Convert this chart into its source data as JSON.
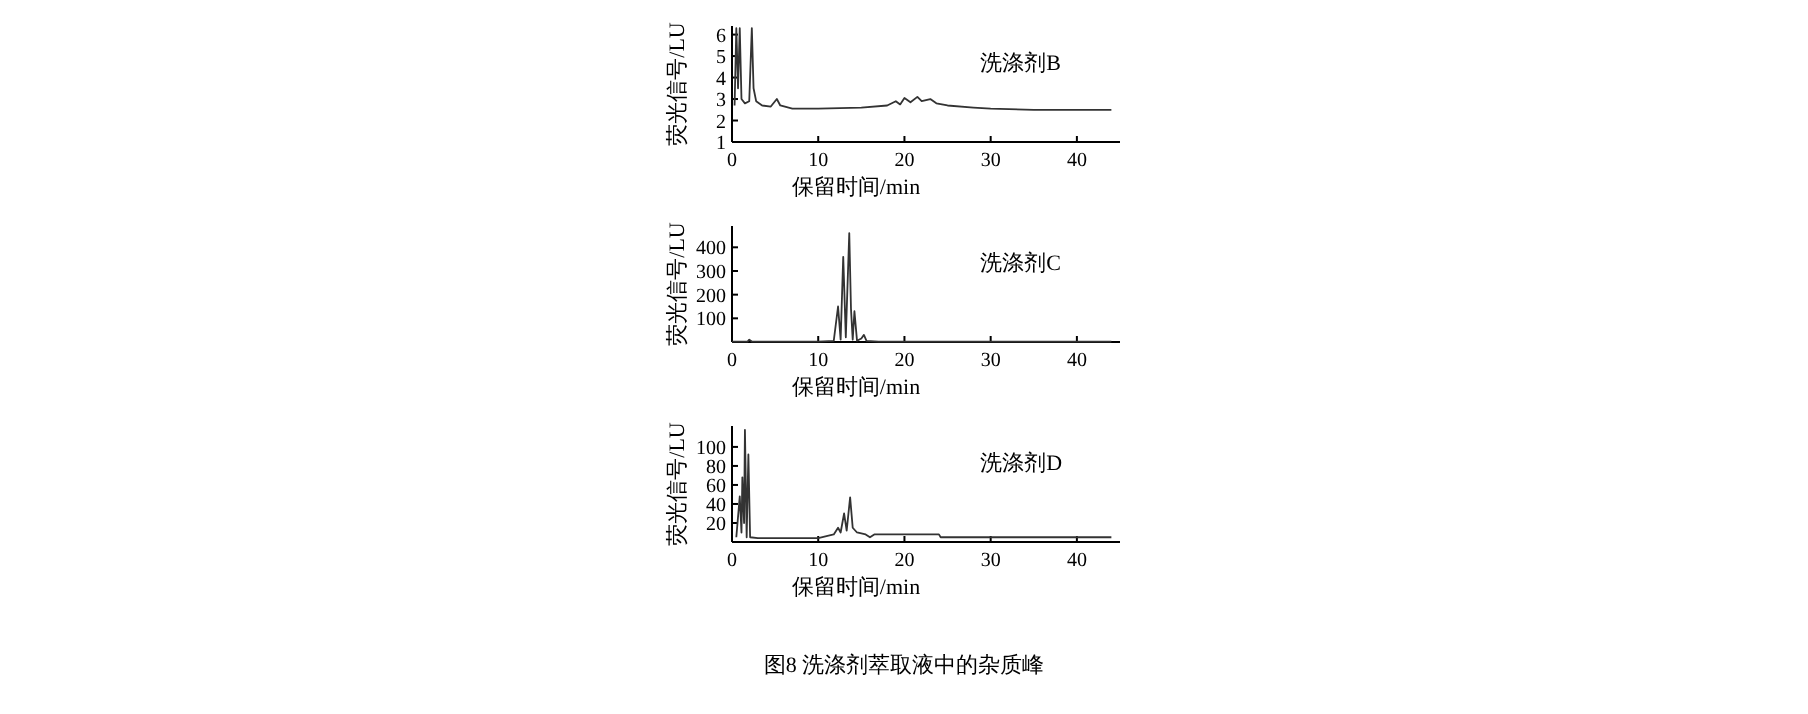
{
  "chart_data": [
    {
      "type": "line",
      "xlabel": "保留时间/min",
      "ylabel": "荧光信号/LU",
      "xlim": [
        0,
        45
      ],
      "xticks": [
        0,
        10,
        20,
        30,
        40
      ],
      "ylim": [
        1,
        6.4
      ],
      "yticks": [
        1,
        2,
        3,
        4,
        5,
        6
      ],
      "series": [
        {
          "name": "洗涤剂B",
          "color": "#333333",
          "x": [
            0.3,
            0.5,
            0.7,
            0.9,
            1.1,
            1.5,
            2.0,
            2.3,
            2.5,
            2.8,
            3.5,
            4.5,
            5.2,
            5.6,
            7,
            10,
            15,
            18,
            19,
            19.5,
            20,
            20.7,
            21.5,
            22,
            23,
            23.7,
            25,
            28,
            30,
            35,
            40,
            44
          ],
          "values": [
            2.7,
            6.3,
            3.5,
            6.3,
            3.0,
            2.8,
            2.9,
            6.3,
            3.5,
            2.9,
            2.7,
            2.65,
            3.0,
            2.7,
            2.55,
            2.55,
            2.6,
            2.7,
            2.9,
            2.75,
            3.05,
            2.85,
            3.1,
            2.9,
            3.0,
            2.8,
            2.7,
            2.6,
            2.55,
            2.5,
            2.5,
            2.5
          ]
        }
      ]
    },
    {
      "type": "line",
      "xlabel": "保留时间/min",
      "ylabel": "荧光信号/LU",
      "xlim": [
        0,
        45
      ],
      "xticks": [
        0,
        10,
        20,
        30,
        40
      ],
      "ylim": [
        0,
        490
      ],
      "yticks": [
        100,
        200,
        300,
        400
      ],
      "series": [
        {
          "name": "洗涤剂C",
          "color": "#333333",
          "x": [
            0,
            1.8,
            2,
            2.3,
            10,
            11.8,
            12.3,
            12.6,
            12.9,
            13.2,
            13.6,
            13.8,
            14.0,
            14.2,
            14.5,
            15,
            15.3,
            15.6,
            17,
            44
          ],
          "values": [
            2,
            2,
            10,
            2,
            2,
            5,
            150,
            10,
            360,
            20,
            460,
            140,
            10,
            130,
            5,
            15,
            30,
            5,
            2,
            2
          ]
        }
      ]
    },
    {
      "type": "line",
      "xlabel": "保留时间/min",
      "ylabel": "荧光信号/LU",
      "xlim": [
        0,
        45
      ],
      "xticks": [
        0,
        10,
        20,
        30,
        40
      ],
      "ylim": [
        0,
        122
      ],
      "yticks": [
        20,
        40,
        60,
        80,
        100
      ],
      "annotations": [
        "图8 洗涤剂萃取液中的杂质峰"
      ],
      "series": [
        {
          "name": "洗涤剂D",
          "color": "#333333",
          "x": [
            0.5,
            0.9,
            1.1,
            1.2,
            1.4,
            1.5,
            1.7,
            1.9,
            2.1,
            3,
            10,
            11.8,
            12.3,
            12.6,
            13.0,
            13.3,
            13.7,
            14,
            14.5,
            15.5,
            16,
            16.5,
            24,
            24.2,
            44
          ],
          "values": [
            5,
            48,
            10,
            68,
            20,
            118,
            5,
            92,
            5,
            4,
            4,
            8,
            15,
            10,
            30,
            12,
            47,
            15,
            10,
            8,
            5,
            8,
            8,
            5,
            5
          ]
        }
      ]
    }
  ]
}
